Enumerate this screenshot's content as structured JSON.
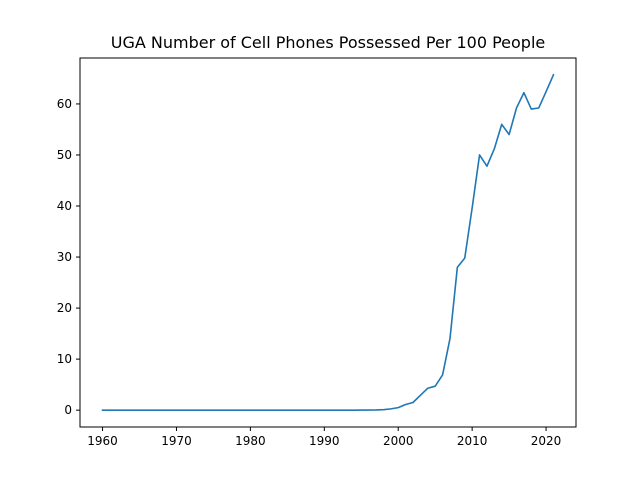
{
  "chart_data": {
    "type": "line",
    "title": "UGA Number of Cell Phones Possessed Per 100 People",
    "xlabel": "",
    "ylabel": "",
    "xlim": [
      1956.95,
      2024.05
    ],
    "ylim": [
      -3.3,
      69.0
    ],
    "xticks": [
      1960,
      1970,
      1980,
      1990,
      2000,
      2010,
      2020
    ],
    "yticks": [
      0,
      10,
      20,
      30,
      40,
      50,
      60
    ],
    "grid": false,
    "legend": "none",
    "color": "#1f77b4",
    "series": [
      {
        "x": [
          1960,
          1961,
          1962,
          1963,
          1964,
          1965,
          1966,
          1967,
          1968,
          1969,
          1970,
          1971,
          1972,
          1973,
          1974,
          1975,
          1976,
          1977,
          1978,
          1979,
          1980,
          1981,
          1982,
          1983,
          1984,
          1985,
          1986,
          1987,
          1988,
          1989,
          1990,
          1991,
          1992,
          1993,
          1994,
          1995,
          1996,
          1997,
          1998,
          1999,
          2000,
          2001,
          2002,
          2003,
          2004,
          2005,
          2006,
          2007,
          2008,
          2009,
          2010,
          2011,
          2012,
          2013,
          2014,
          2015,
          2016,
          2017,
          2018,
          2019,
          2020,
          2021
        ],
        "y": [
          0,
          0,
          0,
          0,
          0,
          0,
          0,
          0,
          0,
          0,
          0,
          0,
          0,
          0,
          0,
          0,
          0,
          0,
          0,
          0,
          0,
          0,
          0,
          0,
          0,
          0,
          0,
          0,
          0,
          0,
          0,
          0,
          0,
          0,
          0,
          0.01,
          0.02,
          0.04,
          0.1,
          0.25,
          0.5,
          1.1,
          1.5,
          2.9,
          4.3,
          4.7,
          6.9,
          14.0,
          28.0,
          29.8,
          39.6,
          50.0,
          47.8,
          51.2,
          56.0,
          54.0,
          59.2,
          62.2,
          59.0,
          59.2,
          62.4,
          65.7
        ]
      }
    ]
  }
}
